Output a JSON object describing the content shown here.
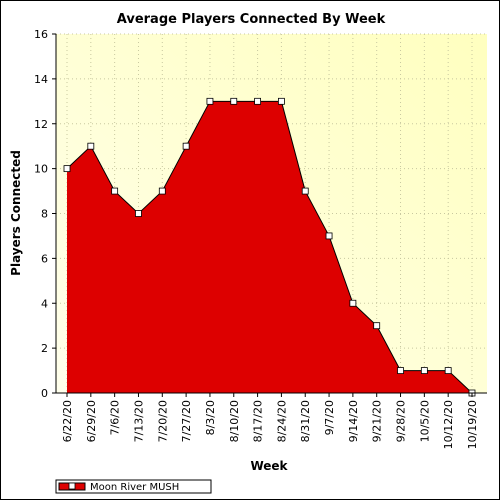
{
  "chart_data": {
    "type": "area",
    "title": "Average Players Connected By Week",
    "xlabel": "Week",
    "ylabel": "Players Connected",
    "categories": [
      "6/22/20",
      "6/29/20",
      "7/6/20",
      "7/13/20",
      "7/20/20",
      "7/27/20",
      "8/3/20",
      "8/10/20",
      "8/17/20",
      "8/24/20",
      "8/31/20",
      "9/7/20",
      "9/14/20",
      "9/21/20",
      "9/28/20",
      "10/5/20",
      "10/12/20",
      "10/19/20"
    ],
    "series": [
      {
        "name": "Moon River MUSH",
        "values": [
          10,
          11,
          9,
          8,
          9,
          11,
          13,
          13,
          13,
          13,
          9,
          7,
          4,
          3,
          1,
          1,
          1,
          0
        ]
      }
    ],
    "ylim": [
      0,
      16
    ],
    "yticks": [
      0,
      2,
      4,
      6,
      8,
      10,
      12,
      14,
      16
    ],
    "grid": true,
    "legend_position": "bottom-left",
    "colors": {
      "fill": "#dd0000",
      "line": "#000000",
      "marker": "#ffffff",
      "plot_bg_light": "#ffffec",
      "plot_bg_dark": "#ffffbf",
      "grid": "#c8c8a0"
    }
  }
}
